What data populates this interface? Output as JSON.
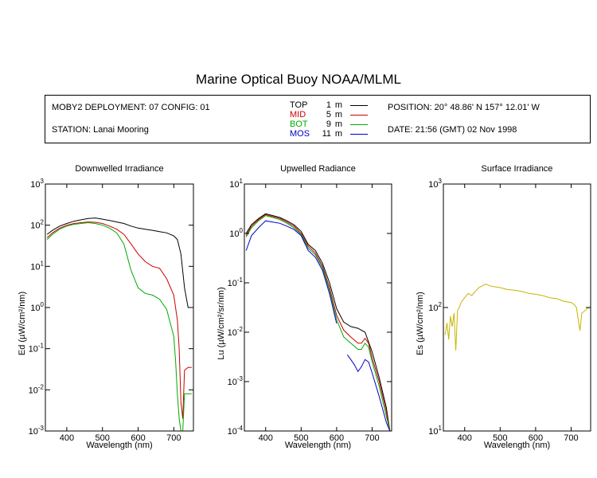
{
  "title": "Marine Optical Buoy NOAA/MLML",
  "info": {
    "deployment": "MOBY2 DEPLOYMENT: 07 CONFIG: 01",
    "station": "STATION: Lanai Mooring",
    "position": "POSITION: 20° 48.86' N   157° 12.01' W",
    "date": "DATE: 21:56 (GMT) 02 Nov 1998"
  },
  "legend": [
    {
      "name": "TOP",
      "depth": "1",
      "unit": "m",
      "color": "#000000"
    },
    {
      "name": "MID",
      "depth": "5",
      "unit": "m",
      "color": "#cc0000"
    },
    {
      "name": "BOT",
      "depth": "9",
      "unit": "m",
      "color": "#00aa00"
    },
    {
      "name": "MOS",
      "depth": "11",
      "unit": "m",
      "color": "#0000cc"
    }
  ],
  "chart_data": [
    {
      "type": "line",
      "title": "Downwelled Irradiance",
      "xlabel": "Wavelength (nm)",
      "ylabel": "Ed  (µW/cm²/nm)",
      "xlim": [
        340,
        755
      ],
      "ylim": [
        0.001,
        1000
      ],
      "yscale": "log",
      "xticks": [
        400,
        500,
        600,
        700
      ],
      "yticks": [
        "10-3",
        "10-2",
        "10-1",
        "100",
        "101",
        "102",
        "103"
      ],
      "series": [
        {
          "name": "TOP",
          "color": "#000000",
          "x": [
            345,
            360,
            380,
            400,
            420,
            440,
            460,
            480,
            500,
            520,
            540,
            560,
            580,
            600,
            620,
            640,
            660,
            680,
            700,
            710,
            720,
            730,
            740,
            750
          ],
          "y": [
            60,
            75,
            95,
            110,
            125,
            135,
            145,
            150,
            140,
            130,
            120,
            110,
            95,
            85,
            80,
            75,
            70,
            65,
            55,
            45,
            20,
            3,
            1.0,
            1.0
          ]
        },
        {
          "name": "MID",
          "color": "#cc0000",
          "x": [
            345,
            360,
            380,
            400,
            420,
            440,
            460,
            480,
            500,
            520,
            540,
            560,
            580,
            600,
            620,
            640,
            660,
            680,
            700,
            710,
            715,
            720,
            725,
            730,
            740,
            750
          ],
          "y": [
            50,
            65,
            85,
            100,
            110,
            115,
            120,
            118,
            110,
            95,
            80,
            60,
            35,
            20,
            13,
            10,
            9,
            5,
            2,
            0.5,
            0.1,
            0.005,
            0.002,
            0.03,
            0.035,
            0.035
          ]
        },
        {
          "name": "BOT",
          "color": "#00aa00",
          "x": [
            345,
            360,
            380,
            400,
            420,
            440,
            460,
            480,
            500,
            520,
            540,
            560,
            580,
            600,
            620,
            640,
            660,
            680,
            700,
            705,
            710,
            715,
            720,
            725,
            730,
            740,
            750
          ],
          "y": [
            45,
            60,
            80,
            95,
            105,
            110,
            115,
            110,
            100,
            85,
            65,
            35,
            8,
            3,
            2.2,
            2.0,
            1.6,
            0.9,
            0.2,
            0.05,
            0.008,
            0.002,
            0.001,
            0.001,
            0.008,
            0.008,
            0.008
          ]
        }
      ]
    },
    {
      "type": "line",
      "title": "Upwelled Radiance",
      "xlabel": "Wavelength (nm)",
      "ylabel": "Lu  (µW/cm²/sr/nm)",
      "xlim": [
        340,
        755
      ],
      "ylim": [
        0.0001,
        10
      ],
      "yscale": "log",
      "xticks": [
        400,
        500,
        600,
        700
      ],
      "yticks": [
        "10-4",
        "10-3",
        "10-2",
        "10-1",
        "100",
        "101"
      ],
      "series": [
        {
          "name": "TOP",
          "color": "#000000",
          "x": [
            345,
            360,
            380,
            400,
            420,
            440,
            460,
            480,
            500,
            520,
            540,
            560,
            580,
            600,
            620,
            640,
            660,
            680,
            700,
            720,
            740,
            750
          ],
          "y": [
            1.0,
            1.5,
            2.0,
            2.5,
            2.3,
            2.1,
            1.8,
            1.5,
            1.1,
            0.6,
            0.45,
            0.25,
            0.1,
            0.03,
            0.016,
            0.013,
            0.012,
            0.01,
            0.004,
            0.0012,
            0.0003,
            0.0001
          ]
        },
        {
          "name": "MID",
          "color": "#cc0000",
          "x": [
            345,
            360,
            380,
            400,
            420,
            440,
            460,
            480,
            500,
            520,
            540,
            560,
            580,
            600,
            620,
            640,
            660,
            670,
            680,
            690,
            700,
            720,
            740,
            750
          ],
          "y": [
            0.9,
            1.4,
            1.9,
            2.4,
            2.2,
            2.0,
            1.7,
            1.4,
            1.0,
            0.55,
            0.4,
            0.22,
            0.08,
            0.022,
            0.011,
            0.008,
            0.006,
            0.006,
            0.0075,
            0.006,
            0.003,
            0.001,
            0.00025,
            0.0001
          ]
        },
        {
          "name": "BOT",
          "color": "#00aa00",
          "x": [
            345,
            360,
            380,
            400,
            420,
            440,
            460,
            480,
            500,
            520,
            540,
            560,
            580,
            600,
            620,
            640,
            660,
            670,
            680,
            690,
            700,
            720,
            740,
            750
          ],
          "y": [
            0.85,
            1.3,
            1.8,
            2.3,
            2.1,
            1.9,
            1.6,
            1.3,
            0.95,
            0.5,
            0.37,
            0.2,
            0.07,
            0.018,
            0.008,
            0.006,
            0.0045,
            0.0045,
            0.006,
            0.005,
            0.0025,
            0.0008,
            0.0002,
            0.0001
          ]
        },
        {
          "name": "MOS",
          "color": "#0000cc",
          "x": [
            345,
            360,
            380,
            400,
            420,
            440,
            460,
            480,
            500,
            520,
            540,
            560,
            580,
            600,
            620,
            630,
            640,
            650,
            660,
            670,
            680,
            690,
            700,
            720,
            740,
            750
          ],
          "y": [
            0.45,
            0.9,
            1.3,
            1.8,
            1.7,
            1.6,
            1.4,
            1.2,
            0.9,
            0.45,
            0.33,
            0.18,
            0.06,
            0.015,
            null,
            0.0035,
            0.0028,
            0.0022,
            0.0016,
            0.002,
            0.0028,
            0.0025,
            0.0015,
            0.0005,
            0.00015,
            0.0001
          ]
        }
      ]
    },
    {
      "type": "line",
      "title": "Surface Irradiance",
      "xlabel": "Wavelength (nm)",
      "ylabel": "Es  (µW/cm²/nm)",
      "xlim": [
        340,
        755
      ],
      "ylim": [
        10,
        1000
      ],
      "yscale": "log",
      "xticks": [
        400,
        500,
        600,
        700
      ],
      "yticks": [
        "101",
        "102",
        "103"
      ],
      "series": [
        {
          "name": "Es",
          "color": "#c8b400",
          "x": [
            345,
            350,
            355,
            360,
            365,
            370,
            375,
            380,
            385,
            390,
            400,
            410,
            420,
            430,
            440,
            450,
            460,
            470,
            480,
            500,
            520,
            540,
            560,
            580,
            600,
            620,
            640,
            660,
            680,
            700,
            710,
            715,
            720,
            725,
            730,
            740,
            750
          ],
          "y": [
            60,
            75,
            55,
            85,
            70,
            90,
            45,
            95,
            100,
            110,
            120,
            130,
            125,
            135,
            145,
            150,
            155,
            150,
            148,
            145,
            140,
            138,
            135,
            130,
            128,
            125,
            120,
            118,
            112,
            110,
            105,
            100,
            80,
            65,
            90,
            95,
            100
          ]
        }
      ]
    }
  ]
}
